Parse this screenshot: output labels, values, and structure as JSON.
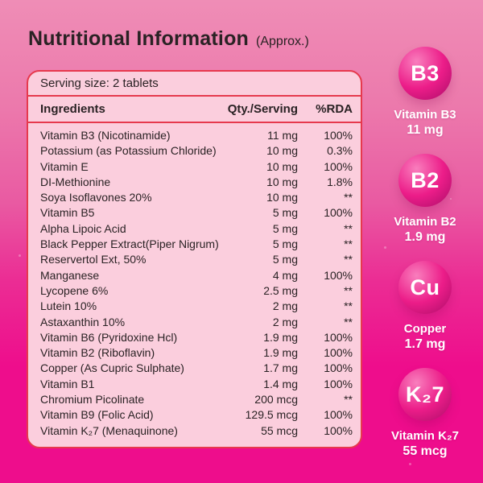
{
  "colors": {
    "bg-top": "#ef8db6",
    "bg-mid": "#e95aa2",
    "bg-bottom": "#ee0d8c",
    "card-bg": "#fbcedd",
    "card-border": "#e6394d",
    "text-dark": "#2a2224",
    "text-white": "#ffffff",
    "sphere-light": "#f97ebd",
    "sphere-mid": "#ec1d89",
    "sphere-dark": "#a80d66"
  },
  "header": {
    "title": "Nutritional Information",
    "suffix": "(Approx.)"
  },
  "table": {
    "serving_size": "Serving size: 2 tablets",
    "columns": {
      "ingredient": "Ingredients",
      "qty": "Qty./Serving",
      "rda": "%RDA"
    },
    "rows": [
      {
        "name": "Vitamin B3 (Nicotinamide)",
        "qty": "11 mg",
        "rda": "100%"
      },
      {
        "name": "Potassium (as Potassium Chloride)",
        "qty": "10 mg",
        "rda": "0.3%"
      },
      {
        "name": "Vitamin E",
        "qty": "10 mg",
        "rda": "100%"
      },
      {
        "name": "DI-Methionine",
        "qty": "10 mg",
        "rda": "1.8%"
      },
      {
        "name": "Soya Isoflavones 20%",
        "qty": "10 mg",
        "rda": "**"
      },
      {
        "name": "Vitamin B5",
        "qty": "5 mg",
        "rda": "100%"
      },
      {
        "name": "Alpha Lipoic Acid",
        "qty": "5 mg",
        "rda": "**"
      },
      {
        "name": "Black Pepper Extract(Piper Nigrum)",
        "qty": "5 mg",
        "rda": "**"
      },
      {
        "name": "Reservertol Ext, 50%",
        "qty": "5 mg",
        "rda": "**"
      },
      {
        "name": "Manganese",
        "qty": "4 mg",
        "rda": "100%"
      },
      {
        "name": "Lycopene 6%",
        "qty": "2.5 mg",
        "rda": "**"
      },
      {
        "name": "Lutein 10%",
        "qty": "2 mg",
        "rda": "**"
      },
      {
        "name": "Astaxanthin 10%",
        "qty": "2 mg",
        "rda": "**"
      },
      {
        "name": "Vitamin B6 (Pyridoxine Hcl)",
        "qty": "1.9 mg",
        "rda": "100%"
      },
      {
        "name": "Vitamin B2 (Riboflavin)",
        "qty": "1.9 mg",
        "rda": "100%"
      },
      {
        "name": "Copper (As Cupric Sulphate)",
        "qty": "1.7 mg",
        "rda": "100%"
      },
      {
        "name": "Vitamin B1",
        "qty": "1.4 mg",
        "rda": "100%"
      },
      {
        "name": "Chromium Picolinate",
        "qty": "200 mcg",
        "rda": "**"
      },
      {
        "name": "Vitamin B9 (Folic Acid)",
        "qty": "129.5 mcg",
        "rda": "100%"
      },
      {
        "name": "Vitamin K₂7 (Menaquinone)",
        "qty": "55 mcg",
        "rda": "100%"
      }
    ]
  },
  "badges": [
    {
      "symbol": "B3",
      "label": "Vitamin B3",
      "value": "11 mg"
    },
    {
      "symbol": "B2",
      "label": "Vitamin B2",
      "value": "1.9 mg"
    },
    {
      "symbol": "Cu",
      "label": "Copper",
      "value": "1.7 mg"
    },
    {
      "symbol": "K₂7",
      "label": "Vitamin K₂7",
      "value": "55 mcg"
    }
  ]
}
